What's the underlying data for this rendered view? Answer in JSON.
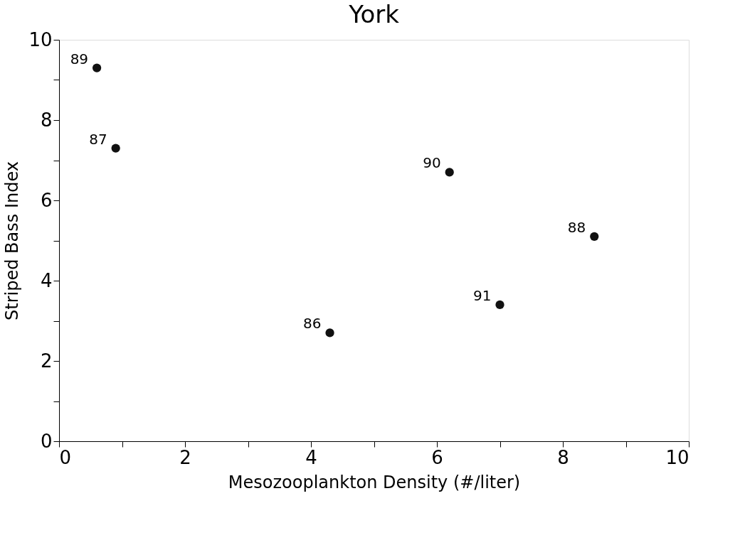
{
  "chart_data": {
    "type": "scatter",
    "title": "York",
    "xlabel": "Mesozooplankton Density (#/liter)",
    "ylabel": "Striped Bass Index",
    "x": [
      0.6,
      0.9,
      6.2,
      8.5,
      7.0,
      4.3
    ],
    "series": [
      {
        "color": "#111111",
        "values": [
          9.3,
          7.3,
          6.7,
          5.1,
          3.4,
          2.7
        ]
      }
    ],
    "annotations": [
      {
        "text": "89",
        "x": 0.6,
        "y": 9.3
      },
      {
        "text": "87",
        "x": 0.9,
        "y": 7.3
      },
      {
        "text": "90",
        "x": 6.2,
        "y": 6.7
      },
      {
        "text": "88",
        "x": 8.5,
        "y": 5.1
      },
      {
        "text": "91",
        "x": 7.0,
        "y": 3.4
      },
      {
        "text": "86",
        "x": 4.3,
        "y": 2.7
      }
    ],
    "xlim": [
      0,
      10
    ],
    "ylim": [
      0,
      10
    ],
    "xticks": [
      0,
      {
        "value": 1,
        "label": null
      },
      2,
      {
        "value": 3,
        "label": null
      },
      4,
      {
        "value": 5,
        "label": null
      },
      6,
      {
        "value": 7,
        "label": null
      },
      8,
      {
        "value": 9,
        "label": null
      },
      10
    ],
    "yticks": [
      0,
      {
        "value": 1,
        "label": null
      },
      2,
      {
        "value": 3,
        "label": null
      },
      4,
      {
        "value": 5,
        "label": null
      },
      6,
      {
        "value": 7,
        "label": null
      },
      8,
      {
        "value": 9,
        "label": null
      },
      10
    ],
    "grid": false,
    "marker": "circle"
  }
}
